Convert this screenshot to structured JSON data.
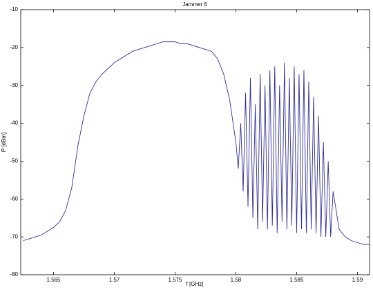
{
  "chart_data": {
    "type": "line",
    "title": "Jammer 6",
    "xlabel": "f [GHz]",
    "ylabel": "P [dBm]",
    "x": [
      1.5625,
      1.563,
      1.5635,
      1.564,
      1.5645,
      1.565,
      1.5655,
      1.566,
      1.5665,
      1.567,
      1.5675,
      1.568,
      1.5685,
      1.569,
      1.5695,
      1.57,
      1.5705,
      1.571,
      1.5715,
      1.572,
      1.5725,
      1.573,
      1.5735,
      1.574,
      1.5745,
      1.575,
      1.5755,
      1.576,
      1.5765,
      1.577,
      1.5775,
      1.578,
      1.5785,
      1.579,
      1.5795,
      1.58,
      1.5802,
      1.5804,
      1.5806,
      1.5808,
      1.581,
      1.5812,
      1.5814,
      1.5816,
      1.5818,
      1.582,
      1.5822,
      1.5824,
      1.5826,
      1.5828,
      1.583,
      1.5832,
      1.5834,
      1.5836,
      1.5838,
      1.584,
      1.5842,
      1.5844,
      1.5846,
      1.5848,
      1.585,
      1.5852,
      1.5854,
      1.5856,
      1.5858,
      1.586,
      1.5862,
      1.5864,
      1.5866,
      1.5868,
      1.587,
      1.5872,
      1.5874,
      1.5876,
      1.5878,
      1.588,
      1.5885,
      1.589,
      1.5895,
      1.59,
      1.5905,
      1.591
    ],
    "series": [
      {
        "color": "#2e2e96",
        "values": [
          -71,
          -70.5,
          -70,
          -69.5,
          -68.5,
          -67.5,
          -66,
          -63,
          -57,
          -46,
          -38,
          -32,
          -29,
          -27,
          -25.5,
          -24,
          -23,
          -22,
          -21,
          -20.5,
          -20,
          -19.5,
          -19,
          -18.5,
          -18.5,
          -18.5,
          -19,
          -19,
          -19.5,
          -20,
          -20.5,
          -21,
          -23,
          -27,
          -34,
          -45,
          -52,
          -40,
          -58,
          -32,
          -62,
          -28,
          -65,
          -35,
          -68,
          -27,
          -66,
          -30,
          -68,
          -26,
          -67,
          -25,
          -69,
          -30,
          -66,
          -24,
          -68,
          -28,
          -67,
          -25,
          -69,
          -27,
          -68,
          -26,
          -69,
          -29,
          -68,
          -33,
          -69,
          -38,
          -70,
          -45,
          -70,
          -50,
          -70,
          -58,
          -68,
          -70,
          -71,
          -71.5,
          -72,
          -72
        ]
      }
    ],
    "xlim": [
      1.5623,
      1.591
    ],
    "ylim": [
      -80,
      -10
    ],
    "xticks": [
      1.565,
      1.57,
      1.575,
      1.58,
      1.585,
      1.59
    ],
    "yticks": [
      -80,
      -70,
      -60,
      -50,
      -40,
      -30,
      -20,
      -10
    ]
  }
}
